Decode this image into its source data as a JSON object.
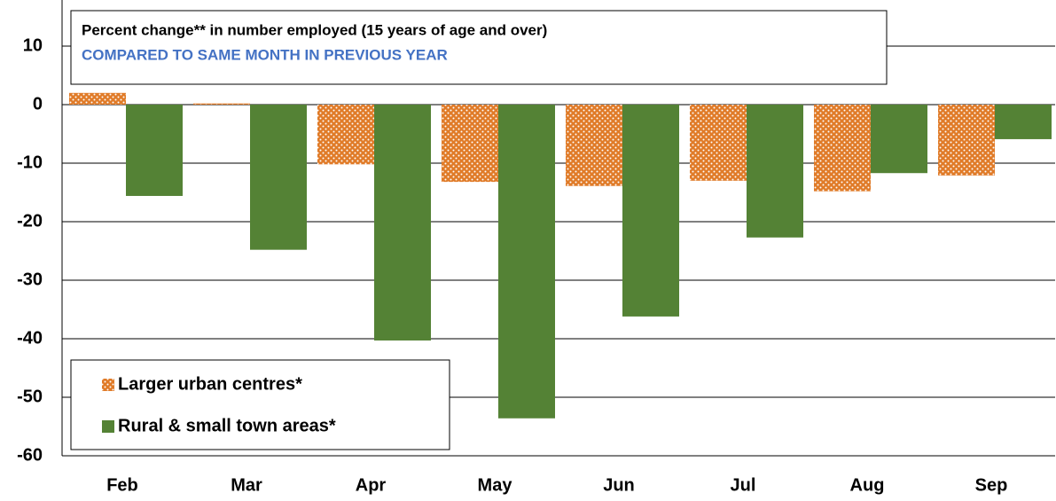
{
  "chart_data": {
    "type": "bar",
    "title": "Percent change** in number employed (15 years of age and over)",
    "subtitle": "COMPARED TO SAME MONTH IN PREVIOUS YEAR",
    "categories": [
      "Feb",
      "Mar",
      "Apr",
      "May",
      "Jun",
      "Jul",
      "Aug",
      "Sep"
    ],
    "series": [
      {
        "name": "Larger urban centres*",
        "color": "#e07b28",
        "values": [
          2,
          0.2,
          -10.2,
          -13.2,
          -13.9,
          -13,
          -14.8,
          -12.1
        ]
      },
      {
        "name": "Rural & small town areas*",
        "color": "#548235",
        "values": [
          -15.6,
          -24.8,
          -40.3,
          -53.6,
          -36.2,
          -22.7,
          -11.7,
          -5.9
        ]
      }
    ],
    "ylim": [
      -60,
      10
    ],
    "yticks": [
      10,
      0,
      -10,
      -20,
      -30,
      -40,
      -50,
      -60
    ],
    "grid": true,
    "legend": "lower-left"
  }
}
